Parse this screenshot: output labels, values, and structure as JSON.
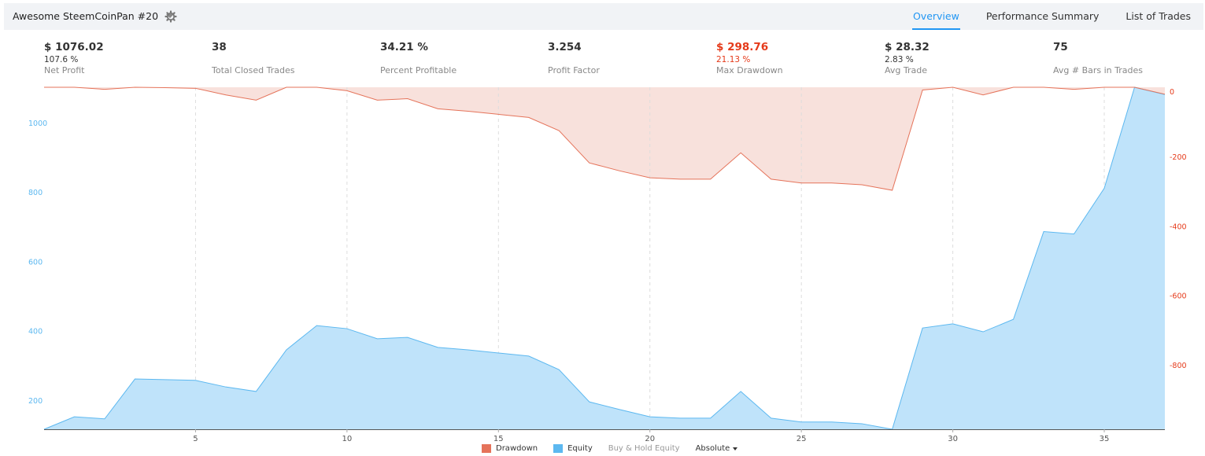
{
  "header": {
    "strategy_title": "Awesome SteemCoinPan #20",
    "tabs": [
      {
        "label": "Overview",
        "active": true
      },
      {
        "label": "Performance Summary",
        "active": false
      },
      {
        "label": "List of Trades",
        "active": false
      }
    ]
  },
  "stats": [
    {
      "value": "$ 1076.02",
      "percent": "107.6 %",
      "label": "Net Profit"
    },
    {
      "value": "38",
      "percent": "",
      "label": "Total Closed Trades"
    },
    {
      "value": "34.21 %",
      "percent": "",
      "label": "Percent Profitable"
    },
    {
      "value": "3.254",
      "percent": "",
      "label": "Profit Factor"
    },
    {
      "value": "$ 298.76",
      "percent": "21.13 %",
      "label": "Max Drawdown"
    },
    {
      "value": "$ 28.32",
      "percent": "2.83 %",
      "label": "Avg Trade"
    },
    {
      "value": "75",
      "percent": "",
      "label": "Avg # Bars in Trades"
    }
  ],
  "legend": {
    "drawdown": "Drawdown",
    "equity": "Equity",
    "buy_hold": "Buy & Hold Equity",
    "mode": "Absolute"
  },
  "colors": {
    "accent": "#2196f3",
    "drawdown": "#e5735a",
    "drawdown_fill": "#f8e1dc",
    "equity": "#5cb8f0",
    "equity_fill": "#bfe3fa",
    "negative": "#e53a1a"
  },
  "chart_data": {
    "type": "area",
    "x": [
      0,
      1,
      2,
      3,
      4,
      5,
      6,
      7,
      8,
      9,
      10,
      11,
      12,
      13,
      14,
      15,
      16,
      17,
      18,
      19,
      20,
      21,
      22,
      23,
      24,
      25,
      26,
      27,
      28,
      29,
      30,
      31,
      32,
      33,
      34,
      35,
      36,
      37
    ],
    "xlim": [
      0,
      37
    ],
    "x_ticks": [
      5,
      10,
      15,
      20,
      25,
      30,
      35
    ],
    "series": [
      {
        "name": "Equity",
        "axis": "left",
        "values": [
          116,
          152,
          146,
          261,
          259,
          257,
          238,
          225,
          345,
          415,
          406,
          377,
          381,
          352,
          345,
          336,
          327,
          288,
          195,
          173,
          152,
          148,
          148,
          225,
          148,
          137,
          137,
          132,
          116,
          408,
          420,
          397,
          433,
          686,
          679,
          811,
          1102,
          1081
        ]
      },
      {
        "name": "Drawdown",
        "axis": "right",
        "values": [
          0,
          0,
          -6,
          0,
          -1,
          -3,
          -22,
          -37,
          0,
          0,
          -10,
          -37,
          -33,
          -62,
          -69,
          -78,
          -87,
          -125,
          -218,
          -241,
          -261,
          -265,
          -265,
          -189,
          -265,
          -276,
          -276,
          -281,
          -297,
          -8,
          0,
          -22,
          0,
          0,
          -6,
          0,
          0,
          -20
        ]
      }
    ],
    "left_axis": {
      "ylim": [
        116,
        1102
      ],
      "ticks": [
        200,
        400,
        600,
        800,
        1000
      ]
    },
    "right_axis": {
      "ylim": [
        -986,
        0
      ],
      "ticks": [
        0,
        -200,
        -400,
        -600,
        -800
      ]
    },
    "grid": "vertical dashed",
    "legend_position": "bottom"
  }
}
